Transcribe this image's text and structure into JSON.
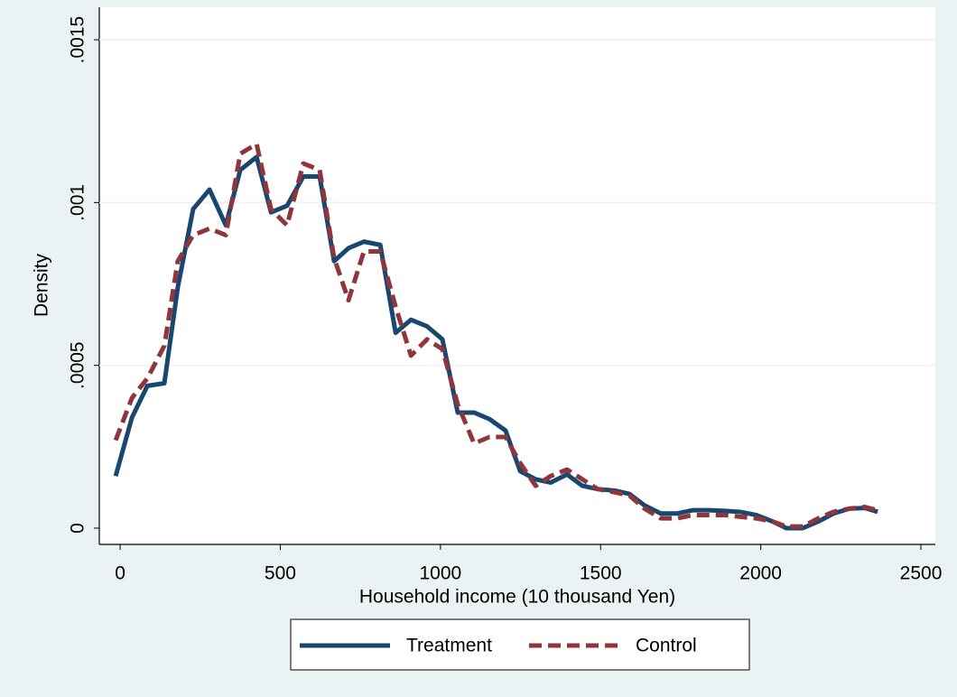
{
  "chart_data": {
    "type": "line",
    "xlabel": "Household income (10 thousand Yen)",
    "ylabel": "Density",
    "x": [
      -14,
      37,
      85,
      138,
      180,
      228,
      279,
      330,
      375,
      426,
      471,
      521,
      572,
      623,
      668,
      713,
      761,
      812,
      860,
      908,
      958,
      1006,
      1054,
      1105,
      1153,
      1203,
      1249,
      1297,
      1344,
      1395,
      1443,
      1491,
      1545,
      1590,
      1637,
      1688,
      1739,
      1787,
      1838,
      1888,
      1936,
      1987,
      2038,
      2080,
      2131,
      2179,
      2227,
      2277,
      2325,
      2365
    ],
    "series": [
      {
        "name": "Treatment",
        "color": "#1a476f",
        "values": [
          0.00016,
          0.00034,
          0.000437,
          0.000445,
          0.00074,
          0.00098,
          0.00104,
          0.00093,
          0.0011,
          0.00114,
          0.00097,
          0.00099,
          0.00108,
          0.00108,
          0.00082,
          0.00086,
          0.00088,
          0.00087,
          0.0006,
          0.00064,
          0.00062,
          0.00058,
          0.000355,
          0.000355,
          0.000335,
          0.0003,
          0.000175,
          0.00015,
          0.00014,
          0.000165,
          0.00013,
          0.00012,
          0.000115,
          0.000105,
          7e-05,
          4.5e-05,
          4.5e-05,
          5.5e-05,
          5.5e-05,
          5.3e-05,
          5e-05,
          4e-05,
          2e-05,
          0,
          0,
          2e-05,
          4.5e-05,
          6e-05,
          6.2e-05,
          5e-05
        ]
      },
      {
        "name": "Control",
        "color": "#90353b",
        "values": [
          0.00027,
          0.0004,
          0.00046,
          0.00056,
          0.00082,
          0.0009,
          0.00092,
          0.0009,
          0.00115,
          0.00118,
          0.00098,
          0.00093,
          0.00112,
          0.0011,
          0.00083,
          0.0007,
          0.00085,
          0.00085,
          0.00068,
          0.00053,
          0.00058,
          0.00055,
          0.00038,
          0.00026,
          0.00028,
          0.00028,
          0.0002,
          0.00013,
          0.00016,
          0.00018,
          0.00015,
          0.00012,
          0.00011,
          0.0001,
          6e-05,
          3e-05,
          3e-05,
          4e-05,
          4e-05,
          4e-05,
          3.5e-05,
          3e-05,
          2e-05,
          5e-06,
          5e-06,
          3e-05,
          5e-05,
          6e-05,
          6.5e-05,
          5.5e-05
        ]
      }
    ],
    "xlim": [
      -65,
      2545
    ],
    "xticks": [
      0,
      500,
      1000,
      1500,
      2000,
      2500
    ],
    "ylim": [
      -5e-05,
      0.0016
    ],
    "yticks": [
      0,
      {
        "value": 0.0005,
        "label": ".0005"
      },
      {
        "value": 0.001,
        "label": ".001"
      },
      {
        "value": 0.0015,
        "label": ".0015"
      }
    ],
    "grid": true,
    "legend": "bottom"
  }
}
